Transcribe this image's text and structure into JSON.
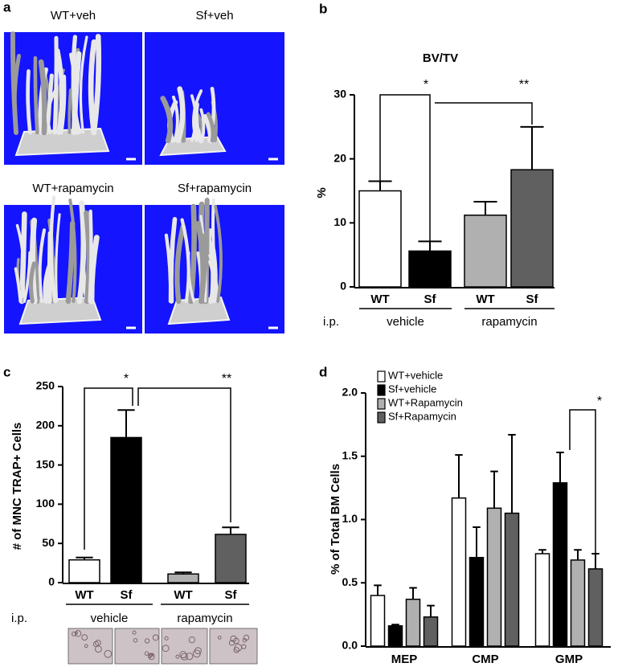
{
  "panel_labels": [
    "a",
    "b",
    "c",
    "d"
  ],
  "panel_a": {
    "images": [
      "WT+veh",
      "Sf+veh",
      "WT+rapamycin",
      "Sf+rapamycin"
    ]
  },
  "chart_data": [
    {
      "type": "bar",
      "title": "BV/TV",
      "y_label": "%",
      "categories": [
        "WT",
        "Sf",
        "WT",
        "Sf"
      ],
      "groups": [
        "vehicle",
        "rapamycin"
      ],
      "group_prefix": "i.p.",
      "values": [
        15,
        5.6,
        11.2,
        18.3
      ],
      "errors": [
        1.5,
        1.5,
        2.1,
        6.7
      ],
      "colors": [
        "#ffffff",
        "#000000",
        "#b0b0b0",
        "#606060"
      ],
      "ylim": [
        0,
        30
      ],
      "yticks": [
        0,
        10,
        20,
        30
      ],
      "annotations": [
        "*",
        "**"
      ]
    },
    {
      "type": "bar",
      "y_label": "# of MNC TRAP+ Cells",
      "categories": [
        "WT",
        "Sf",
        "WT",
        "Sf"
      ],
      "groups": [
        "vehicle",
        "rapamycin"
      ],
      "group_prefix": "i.p.",
      "values": [
        29,
        185,
        11,
        61.5
      ],
      "errors": [
        3,
        35,
        2,
        9
      ],
      "colors": [
        "#ffffff",
        "#000000",
        "#b0b0b0",
        "#606060"
      ],
      "ylim": [
        0,
        250
      ],
      "yticks": [
        0,
        50,
        100,
        150,
        200,
        250
      ],
      "annotations": [
        "*",
        "**"
      ]
    },
    {
      "type": "grouped_bar",
      "y_label": "% of Total BM Cells",
      "categories": [
        "MEP",
        "CMP",
        "GMP"
      ],
      "series": [
        {
          "name": "WT+vehicle",
          "color": "#ffffff",
          "values": [
            0.4,
            1.17,
            0.73
          ],
          "errors": [
            0.08,
            0.34,
            0.03
          ]
        },
        {
          "name": "Sf+vehicle",
          "color": "#000000",
          "values": [
            0.16,
            0.7,
            1.29
          ],
          "errors": [
            0.01,
            0.24,
            0.24
          ]
        },
        {
          "name": "WT+Rapamycin",
          "color": "#b0b0b0",
          "values": [
            0.37,
            1.09,
            0.68
          ],
          "errors": [
            0.09,
            0.29,
            0.08
          ]
        },
        {
          "name": "Sf+Rapamycin",
          "color": "#606060",
          "values": [
            0.23,
            1.05,
            0.61
          ],
          "errors": [
            0.09,
            0.62,
            0.12
          ]
        }
      ],
      "ylim": [
        0,
        2.0
      ],
      "yticks": [
        {
          "value": 0,
          "label": "0.0"
        },
        0.5,
        {
          "value": 1,
          "label": "1.0"
        },
        1.5,
        {
          "value": 2,
          "label": "2.0"
        }
      ],
      "annotations": [
        "*"
      ]
    }
  ]
}
